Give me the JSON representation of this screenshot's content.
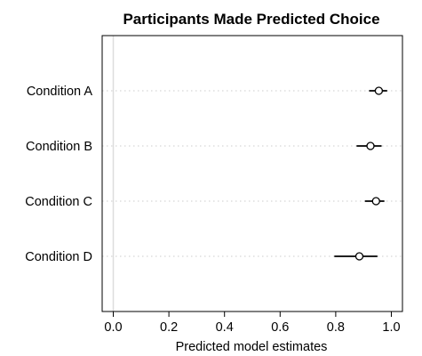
{
  "chart_data": {
    "type": "dot-and-whisker",
    "title": "Participants Made Predicted Choice",
    "xlabel": "Predicted model estimates",
    "ylabel": "",
    "xlim": [
      -0.04,
      1.04
    ],
    "xticks": [
      0.0,
      0.2,
      0.4,
      0.6,
      0.8,
      1.0
    ],
    "xtick_labels": [
      "0.0",
      "0.2",
      "0.4",
      "0.6",
      "0.8",
      "1.0"
    ],
    "reference_line_x": 0.0,
    "grid": "dotted horizontal guide lines at each category",
    "categories": [
      "Condition A",
      "Condition B",
      "Condition C",
      "Condition D"
    ],
    "estimates": [
      0.955,
      0.925,
      0.945,
      0.885
    ],
    "lower": [
      0.92,
      0.875,
      0.905,
      0.795
    ],
    "upper": [
      0.985,
      0.965,
      0.975,
      0.95
    ],
    "colors": {
      "frame": "#000000",
      "guide": "#cccccc",
      "reference": "#dddddd",
      "point": "#000000"
    }
  }
}
